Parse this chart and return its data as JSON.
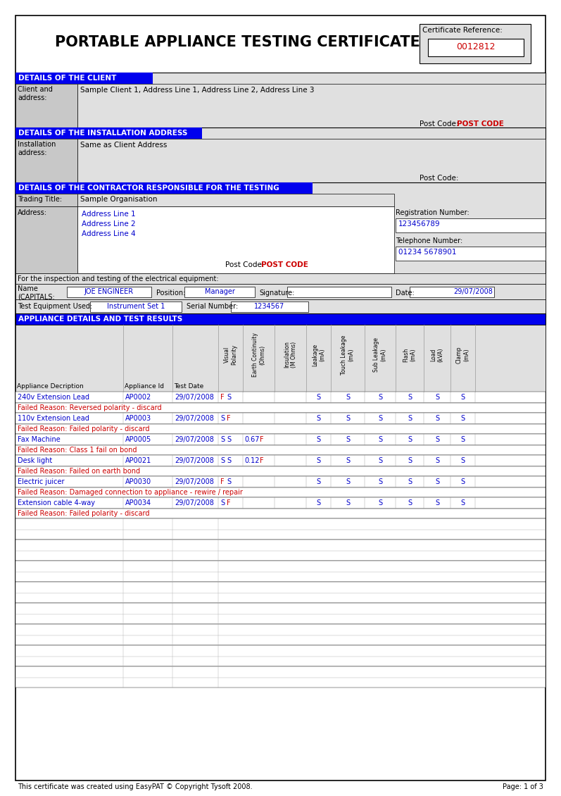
{
  "title": "PORTABLE APPLIANCE TESTING CERTIFICATE",
  "cert_ref_label": "Certificate Reference:",
  "cert_ref_value": "0012812",
  "section1_title": "DETAILS OF THE CLIENT",
  "client_label": "Client and\naddress:",
  "client_value": "Sample Client 1, Address Line 1, Address Line 2, Address Line 3",
  "client_postcode_label": "Post Code:",
  "client_postcode_value": "POST CODE",
  "section2_title": "DETAILS OF THE INSTALLATION ADDRESS",
  "install_label": "Installation\naddress:",
  "install_value": "Same as Client Address",
  "install_postcode_label": "Post Code:",
  "install_postcode_value": "",
  "section3_title": "DETAILS OF THE CONTRACTOR RESPONSIBLE FOR THE TESTING",
  "trading_label": "Trading Title:",
  "trading_value": "Sample Organisation",
  "address_label": "Address:",
  "addr_line1": "Address Line 1",
  "addr_line2": "Address Line 2",
  "addr_line4": "Address Line 4",
  "addr_postcode_label": "Post Code:",
  "addr_postcode_value": "POST CODE",
  "reg_label": "Registration Number:",
  "reg_value": "123456789",
  "tel_label": "Telephone Number:",
  "tel_value": "01234 5678901",
  "inspection_text": "For the inspection and testing of the electrical equipment:",
  "name_label": "Name\n(CAPITALS:",
  "name_value": "JOE ENGINEER",
  "position_label": "Position:",
  "position_value": "Manager",
  "signature_label": "Signature:",
  "date_label": "Date:",
  "date_value": "29/07/2008",
  "equip_label": "Test Equipment Used:",
  "equip_value": "Instrument Set 1",
  "serial_label": "Serial Number:",
  "serial_value": "1234567",
  "section4_title": "APPLIANCE DETAILS AND TEST RESULTS",
  "appliances": [
    {
      "name": "240v Extension Lead",
      "id": "AP0002",
      "date": "29/07/2008",
      "vp1": "F",
      "vp2": "S",
      "ec": "",
      "ins": "",
      "leak": "S",
      "touch": "S",
      "sub": "S",
      "flash": "S",
      "load": "S",
      "clamp": "S",
      "failed": "Failed Reason: Reversed polarity - discard"
    },
    {
      "name": "110v Extension Lead",
      "id": "AP0003",
      "date": "29/07/2008",
      "vp1": "S",
      "vp2": "F",
      "ec": "",
      "ins": "",
      "leak": "S",
      "touch": "S",
      "sub": "S",
      "flash": "S",
      "load": "S",
      "clamp": "S",
      "failed": "Failed Reason: Failed polarity - discard"
    },
    {
      "name": "Fax Machine",
      "id": "AP0005",
      "date": "29/07/2008",
      "vp1": "S",
      "vp2": "S",
      "ec": "0.67",
      "ins": "F",
      "leak": "S",
      "touch": "S",
      "sub": "S",
      "flash": "S",
      "load": "S",
      "clamp": "S",
      "failed": "Failed Reason: Class 1 fail on bond"
    },
    {
      "name": "Desk light",
      "id": "AP0021",
      "date": "29/07/2008",
      "vp1": "S",
      "vp2": "S",
      "ec": "0.12",
      "ins": "F",
      "leak": "S",
      "touch": "S",
      "sub": "S",
      "flash": "S",
      "load": "S",
      "clamp": "S",
      "failed": "Failed Reason: Failed on earth bond"
    },
    {
      "name": "Electric juicer",
      "id": "AP0030",
      "date": "29/07/2008",
      "vp1": "F",
      "vp2": "S",
      "ec": "",
      "ins": "",
      "leak": "S",
      "touch": "S",
      "sub": "S",
      "flash": "S",
      "load": "S",
      "clamp": "S",
      "failed": "Failed Reason: Damaged connection to appliance - rewire / repair"
    },
    {
      "name": "Extension cable 4-way",
      "id": "AP0034",
      "date": "29/07/2008",
      "vp1": "S",
      "vp2": "F",
      "ec": "",
      "ins": "",
      "leak": "S",
      "touch": "S",
      "sub": "S",
      "flash": "S",
      "load": "S",
      "clamp": "S",
      "failed": "Failed Reason: Failed polarity - discard"
    }
  ],
  "footer": "This certificate was created using EasyPAT © Copyright Tysoft 2008.",
  "footer_right": "Page: 1 of 3",
  "bg_white": "#ffffff",
  "blue_hdr": "#0000ee",
  "grey_bg": "#e0e0e0",
  "dark_grey": "#c8c8c8",
  "red": "#cc0000",
  "blue": "#0000cc",
  "black": "#000000",
  "white": "#ffffff"
}
